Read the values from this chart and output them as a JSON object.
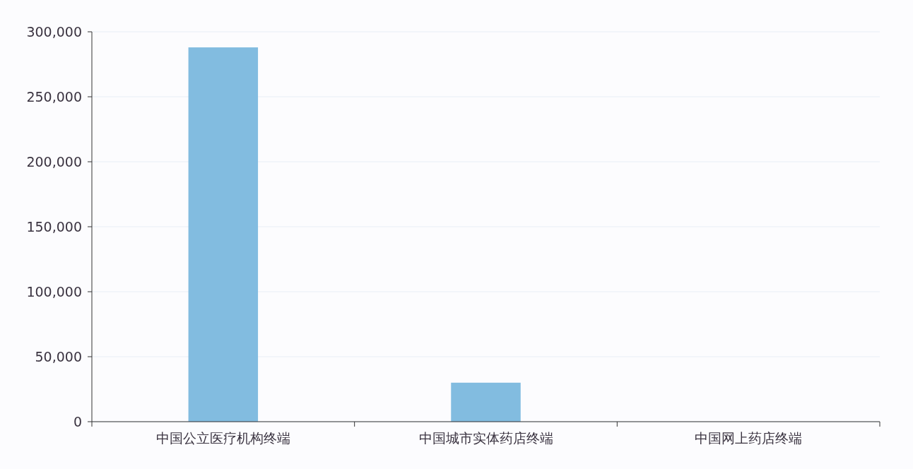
{
  "chart_data": {
    "type": "bar",
    "categories": [
      "中国公立医疗机构终端",
      "中国城市实体药店终端",
      "中国网上药店终端"
    ],
    "values": [
      288000,
      30000,
      0
    ],
    "color": "#82bce0",
    "ylim": [
      0,
      300000
    ],
    "yticks": [
      {
        "value": 0,
        "label": "0"
      },
      {
        "value": 50000,
        "label": "50,000"
      },
      {
        "value": 100000,
        "label": "100,000"
      },
      {
        "value": 150000,
        "label": "150,000"
      },
      {
        "value": 200000,
        "label": "200,000"
      },
      {
        "value": 250000,
        "label": "250,000"
      },
      {
        "value": 300000,
        "label": "300,000"
      }
    ],
    "grid": "y"
  }
}
